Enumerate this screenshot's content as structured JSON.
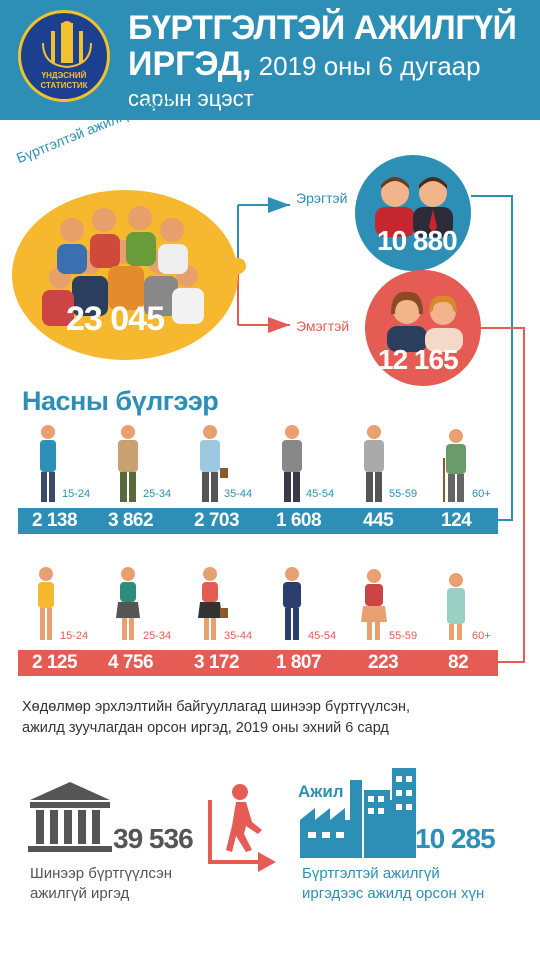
{
  "header": {
    "logo_text_line1": "ҮНДЭСНИЙ",
    "logo_text_line2": "СТАТИСТИК",
    "title_line1": "БҮРТГЭЛТЭЙ АЖИЛГҮЙ",
    "title_line2_bold": "ИРГЭД,",
    "title_line2_rest": " 2019 оны 6 дугаар",
    "title_line3": "сарын эцэст"
  },
  "totals": {
    "label": "Бүртгэлтэй ажилгүй иргэд",
    "total": "23 045",
    "male_label": "Эрэгтэй",
    "male_value": "10 880",
    "female_label": "Эмэгтэй",
    "female_value": "12 165"
  },
  "age_section": {
    "title": "Насны бүлгээр",
    "male": [
      {
        "group": "15-24",
        "value": "2 138"
      },
      {
        "group": "25-34",
        "value": "3 862"
      },
      {
        "group": "35-44",
        "value": "2 703"
      },
      {
        "group": "45-54",
        "value": "1 608"
      },
      {
        "group": "55-59",
        "value": "445"
      },
      {
        "group": "60+",
        "value": "124"
      }
    ],
    "female": [
      {
        "group": "15-24",
        "value": "2 125"
      },
      {
        "group": "25-34",
        "value": "4 756"
      },
      {
        "group": "35-44",
        "value": "3 172"
      },
      {
        "group": "45-54",
        "value": "1 807"
      },
      {
        "group": "55-59",
        "value": "223"
      },
      {
        "group": "60+",
        "value": "82"
      }
    ]
  },
  "note": {
    "line1": "Хөдөлмөр эрхлэлтийн байгууллагад шинээр бүртгүүлсэн,",
    "line2": "ажилд зуучлагдан орсон иргэд, 2019 оны эхний 6 сард"
  },
  "bottom": {
    "registered_value": "39 536",
    "registered_line1": "Шинээр бүртгүүлсэн",
    "registered_line2": "ажилгүй иргэд",
    "work_label": "Ажил",
    "employed_value": "10 285",
    "employed_line1": "Бүртгэлтэй ажилгүй",
    "employed_line2": "иргэдээс ажилд орсон хүн"
  },
  "colors": {
    "blue": "#2d8fb5",
    "red": "#e55c54",
    "yellow": "#f5b82e"
  }
}
